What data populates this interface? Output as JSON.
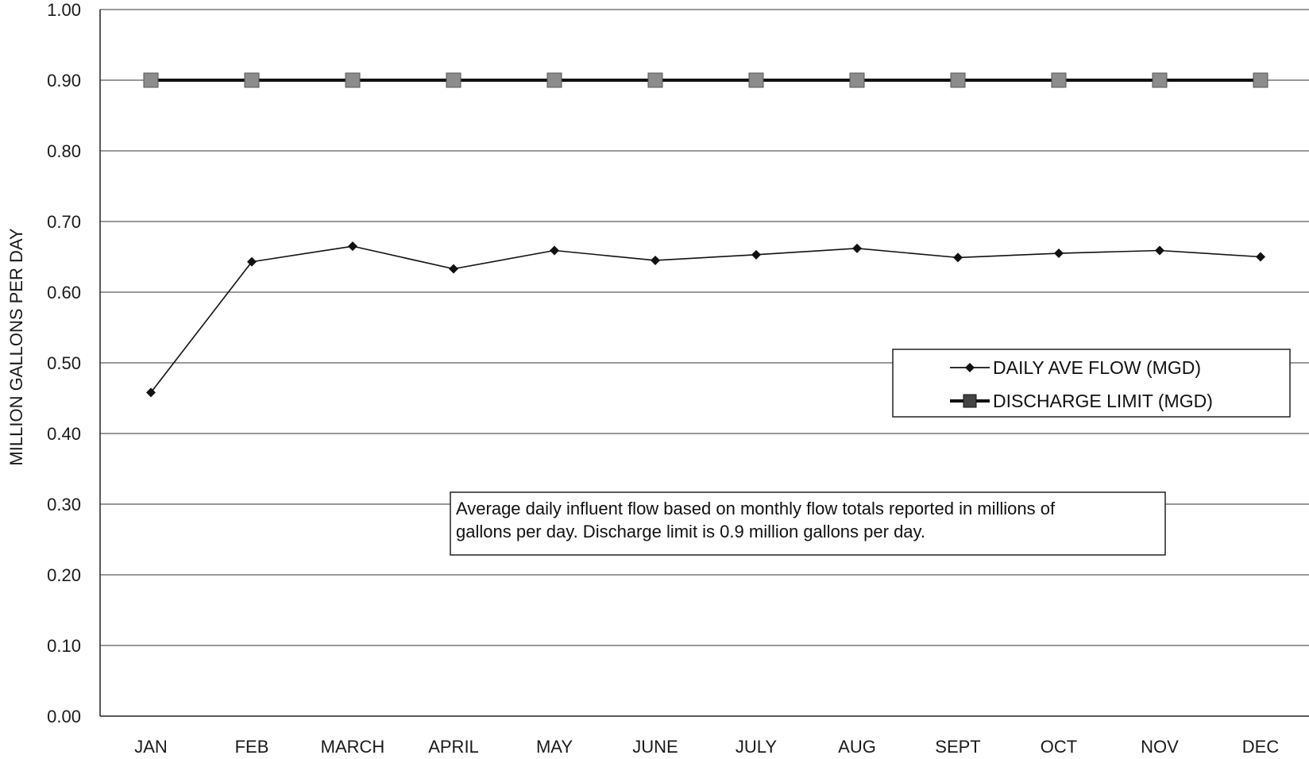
{
  "chart_data": {
    "type": "line",
    "categories": [
      "JAN",
      "FEB",
      "MARCH",
      "APRIL",
      "MAY",
      "JUNE",
      "JULY",
      "AUG",
      "SEPT",
      "OCT",
      "NOV",
      "DEC"
    ],
    "series": [
      {
        "name": "DAILY AVE FLOW (MGD)",
        "values": [
          0.458,
          0.643,
          0.665,
          0.633,
          0.659,
          0.645,
          0.653,
          0.662,
          0.649,
          0.655,
          0.659,
          0.65
        ],
        "color": "#111111",
        "marker": "diamond"
      },
      {
        "name": "DISCHARGE LIMIT (MGD)",
        "values": [
          0.9,
          0.9,
          0.9,
          0.9,
          0.9,
          0.9,
          0.9,
          0.9,
          0.9,
          0.9,
          0.9,
          0.9
        ],
        "color": "#111111",
        "marker": "square",
        "marker_color": "#8c8c8c"
      }
    ],
    "ylabel": "MILLION GALLONS PER DAY",
    "xlabel": "",
    "ylim": [
      0,
      1.0
    ],
    "yticks": [
      "0.00",
      "0.10",
      "0.20",
      "0.30",
      "0.40",
      "0.50",
      "0.60",
      "0.70",
      "0.80",
      "0.90",
      "1.00"
    ],
    "ytick_values": [
      0,
      0.1,
      0.2,
      0.3,
      0.4,
      0.5,
      0.6,
      0.7,
      0.8,
      0.9,
      1.0
    ],
    "grid": true,
    "legend_position": "right",
    "annotation": {
      "line1": "Average daily influent flow based on monthly flow totals reported in millions of",
      "line2": "gallons per day.  Discharge limit is 0.9 million gallons per day."
    }
  }
}
